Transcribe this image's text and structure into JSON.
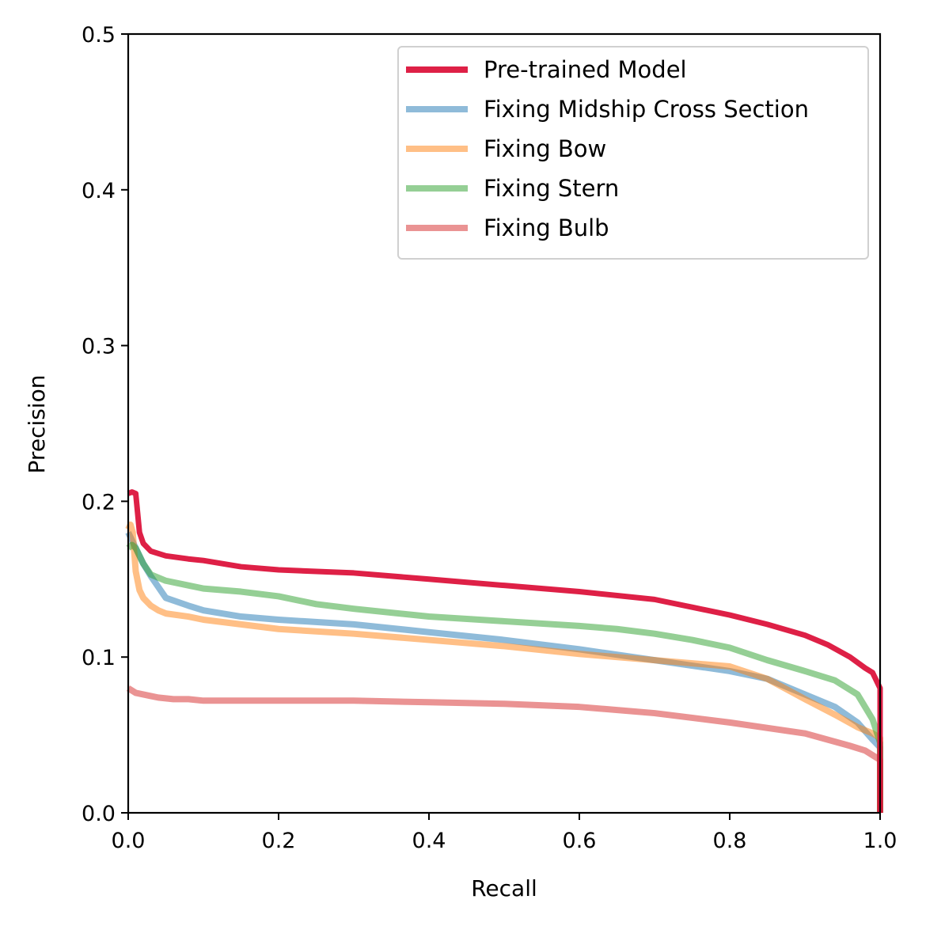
{
  "chart_data": {
    "type": "line",
    "xlabel": "Recall",
    "ylabel": "Precision",
    "xlim": [
      0.0,
      1.0
    ],
    "ylim": [
      0.0,
      0.5
    ],
    "xticks": [
      "0.0",
      "0.2",
      "0.4",
      "0.6",
      "0.8",
      "1.0"
    ],
    "yticks": [
      "0.0",
      "0.1",
      "0.2",
      "0.3",
      "0.4",
      "0.5"
    ],
    "grid": false,
    "legend_position": "top-right",
    "series": [
      {
        "name": "Pre-trained Model",
        "color": "#dc143c",
        "opacity": 0.95,
        "emphasis": true,
        "x": [
          0.0,
          0.005,
          0.01,
          0.015,
          0.02,
          0.03,
          0.05,
          0.08,
          0.1,
          0.15,
          0.2,
          0.3,
          0.4,
          0.5,
          0.6,
          0.7,
          0.75,
          0.8,
          0.85,
          0.9,
          0.93,
          0.96,
          0.98,
          0.99,
          0.995,
          1.0,
          1.0
        ],
        "y": [
          0.205,
          0.206,
          0.205,
          0.18,
          0.173,
          0.168,
          0.165,
          0.163,
          0.162,
          0.158,
          0.156,
          0.154,
          0.15,
          0.146,
          0.142,
          0.137,
          0.132,
          0.127,
          0.121,
          0.114,
          0.108,
          0.1,
          0.093,
          0.09,
          0.085,
          0.08,
          0.0
        ]
      },
      {
        "name": "Fixing Midship Cross Section",
        "color": "#1f77b4",
        "opacity": 0.5,
        "x": [
          0.0,
          0.005,
          0.01,
          0.02,
          0.03,
          0.04,
          0.05,
          0.08,
          0.1,
          0.15,
          0.2,
          0.3,
          0.4,
          0.5,
          0.6,
          0.7,
          0.8,
          0.85,
          0.9,
          0.94,
          0.97,
          0.99,
          1.0,
          1.0
        ],
        "y": [
          0.18,
          0.175,
          0.17,
          0.16,
          0.152,
          0.145,
          0.138,
          0.133,
          0.13,
          0.126,
          0.124,
          0.121,
          0.116,
          0.111,
          0.105,
          0.098,
          0.091,
          0.086,
          0.076,
          0.068,
          0.058,
          0.047,
          0.042,
          0.0
        ]
      },
      {
        "name": "Fixing Bow",
        "color": "#ff7f0e",
        "opacity": 0.5,
        "x": [
          0.0,
          0.003,
          0.006,
          0.01,
          0.015,
          0.02,
          0.03,
          0.04,
          0.05,
          0.08,
          0.1,
          0.15,
          0.2,
          0.3,
          0.4,
          0.5,
          0.6,
          0.7,
          0.8,
          0.85,
          0.9,
          0.94,
          0.97,
          0.99,
          1.0,
          1.0
        ],
        "y": [
          0.182,
          0.185,
          0.18,
          0.155,
          0.143,
          0.138,
          0.133,
          0.13,
          0.128,
          0.126,
          0.124,
          0.121,
          0.118,
          0.115,
          0.111,
          0.107,
          0.102,
          0.098,
          0.094,
          0.086,
          0.073,
          0.063,
          0.055,
          0.051,
          0.048,
          0.0
        ]
      },
      {
        "name": "Fixing Stern",
        "color": "#2ca02c",
        "opacity": 0.5,
        "x": [
          0.0,
          0.005,
          0.01,
          0.02,
          0.03,
          0.05,
          0.08,
          0.1,
          0.15,
          0.2,
          0.25,
          0.3,
          0.4,
          0.5,
          0.6,
          0.65,
          0.7,
          0.75,
          0.8,
          0.85,
          0.9,
          0.94,
          0.97,
          0.99,
          1.0,
          1.0
        ],
        "y": [
          0.17,
          0.172,
          0.17,
          0.16,
          0.153,
          0.149,
          0.146,
          0.144,
          0.142,
          0.139,
          0.134,
          0.131,
          0.126,
          0.123,
          0.12,
          0.118,
          0.115,
          0.111,
          0.106,
          0.098,
          0.091,
          0.085,
          0.076,
          0.06,
          0.045,
          0.0
        ]
      },
      {
        "name": "Fixing Bulb",
        "color": "#d62728",
        "opacity": 0.5,
        "x": [
          0.0,
          0.01,
          0.02,
          0.03,
          0.04,
          0.06,
          0.08,
          0.1,
          0.2,
          0.3,
          0.4,
          0.5,
          0.6,
          0.7,
          0.8,
          0.9,
          0.93,
          0.96,
          0.98,
          0.99,
          1.0,
          1.0
        ],
        "y": [
          0.08,
          0.077,
          0.076,
          0.075,
          0.074,
          0.073,
          0.073,
          0.072,
          0.072,
          0.072,
          0.071,
          0.07,
          0.068,
          0.064,
          0.058,
          0.051,
          0.047,
          0.043,
          0.04,
          0.037,
          0.034,
          0.0
        ]
      }
    ]
  }
}
